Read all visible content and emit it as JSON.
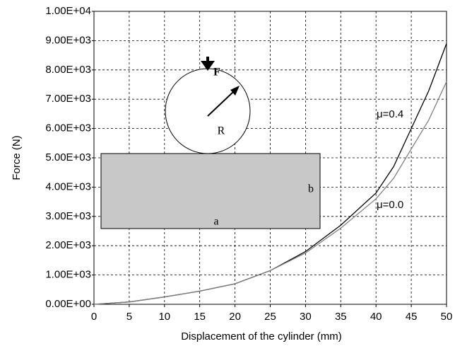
{
  "chart_data": {
    "type": "line",
    "x_label": "Displacement of the cylinder (mm)",
    "y_label": "Force (N)",
    "x": [
      0,
      5,
      10,
      15,
      20,
      25,
      30,
      35,
      40,
      42.5,
      45,
      47.5,
      50
    ],
    "series": [
      {
        "name": "μ=0.4",
        "color": "#000000",
        "values": [
          0,
          80,
          250,
          450,
          700,
          1150,
          1800,
          2700,
          3800,
          4700,
          6000,
          7300,
          8900
        ]
      },
      {
        "name": "μ=0.0",
        "color": "#808080",
        "values": [
          0,
          80,
          250,
          450,
          700,
          1150,
          1750,
          2600,
          3600,
          4300,
          5300,
          6300,
          7600
        ]
      }
    ],
    "xlim": [
      0,
      50
    ],
    "xticks": [
      0,
      5,
      10,
      15,
      20,
      25,
      30,
      35,
      40,
      45,
      50
    ],
    "ylim": [
      0,
      10000
    ],
    "yticks": [
      {
        "value": 0,
        "label": "0.00E+00"
      },
      {
        "value": 1000,
        "label": "1.00E+03"
      },
      {
        "value": 2000,
        "label": "2.00E+03"
      },
      {
        "value": 3000,
        "label": "3.00E+03"
      },
      {
        "value": 4000,
        "label": "4.00E+03"
      },
      {
        "value": 5000,
        "label": "5.00E+03"
      },
      {
        "value": 6000,
        "label": "6.00E+03"
      },
      {
        "value": 7000,
        "label": "7.00E+03"
      },
      {
        "value": 8000,
        "label": "8.00E+03"
      },
      {
        "value": 9000,
        "label": "9.00E+03"
      },
      {
        "value": 10000,
        "label": "1.00E+04"
      }
    ],
    "grid": true,
    "diagram_labels": [
      "F",
      "R",
      "a",
      "b"
    ]
  }
}
